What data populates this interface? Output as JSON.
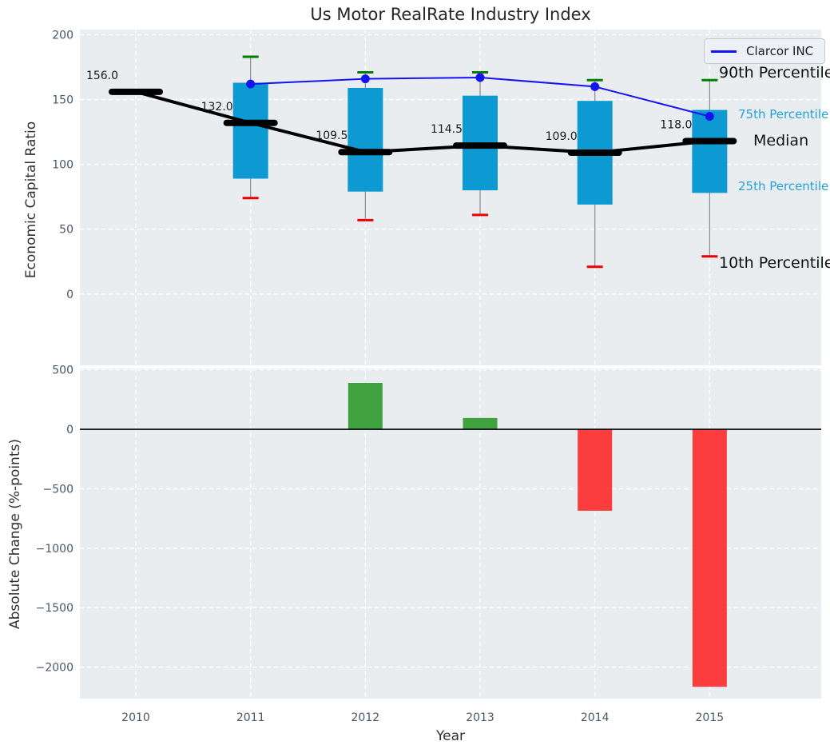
{
  "title": "Us Motor RealRate Industry Index",
  "legend": {
    "label": "Clarcor INC"
  },
  "side_labels": {
    "p90": "90th Percentile",
    "p75": "75th Percentile",
    "median": "Median",
    "p25": "25th Percentile",
    "p10": "10th Percentile"
  },
  "colors": {
    "plot_bg": "#e9edef",
    "grid": "#ffffff",
    "tick_text": "#46586a",
    "box_fill": "#0d9ad2",
    "whisker": "#8a8a8a",
    "cap_high": "#007e00",
    "cap_low": "#ea0000",
    "median_line": "#000000",
    "company_line": "#1414f0",
    "bar_positive": "#3fa23f",
    "bar_negative": "#fb3d3d",
    "annotation_text": "#1a1a1a",
    "zero_line": "#000000"
  },
  "chart_data": [
    {
      "type": "boxplot+line",
      "title": "Us Motor RealRate Industry Index",
      "ylabel": "Economic Capital Ratio",
      "categories": [
        "2010",
        "2011",
        "2012",
        "2013",
        "2014",
        "2015"
      ],
      "yticks": [
        0,
        50,
        100,
        150,
        200
      ],
      "ytick_labels": [
        "0",
        "50",
        "100",
        "150",
        "200"
      ],
      "ylim": [
        -55,
        204
      ],
      "grid": true,
      "legend_position": "upper right",
      "series": [
        {
          "name": "Median",
          "values": [
            156.0,
            132.0,
            109.5,
            114.5,
            109.0,
            118.0
          ]
        },
        {
          "name": "75th Percentile",
          "values": [
            null,
            163,
            159,
            153,
            149,
            142
          ]
        },
        {
          "name": "25th Percentile",
          "values": [
            null,
            89,
            79,
            80,
            69,
            78
          ]
        },
        {
          "name": "90th Percentile",
          "values": [
            null,
            183,
            171,
            171,
            165,
            165
          ]
        },
        {
          "name": "10th Percentile",
          "values": [
            null,
            74,
            57,
            61,
            21,
            29
          ]
        },
        {
          "name": "Clarcor INC",
          "values": [
            null,
            162,
            166,
            167,
            160,
            137
          ]
        }
      ],
      "median_labels": [
        "156.0",
        "132.0",
        "109.5",
        "114.5",
        "109.0",
        "118.0"
      ]
    },
    {
      "type": "bar",
      "xlabel": "Year",
      "ylabel": "Absolute Change (%-points)",
      "categories": [
        "2010",
        "2011",
        "2012",
        "2013",
        "2014",
        "2015"
      ],
      "values": [
        null,
        null,
        390,
        95,
        -685,
        -2165
      ],
      "yticks": [
        500,
        0,
        -500,
        -1000,
        -1500,
        -2000
      ],
      "ytick_labels": [
        "500",
        "0",
        "−500",
        "−1000",
        "−1500",
        "−2000"
      ],
      "ylim": [
        -2265,
        511
      ],
      "grid": true
    }
  ]
}
